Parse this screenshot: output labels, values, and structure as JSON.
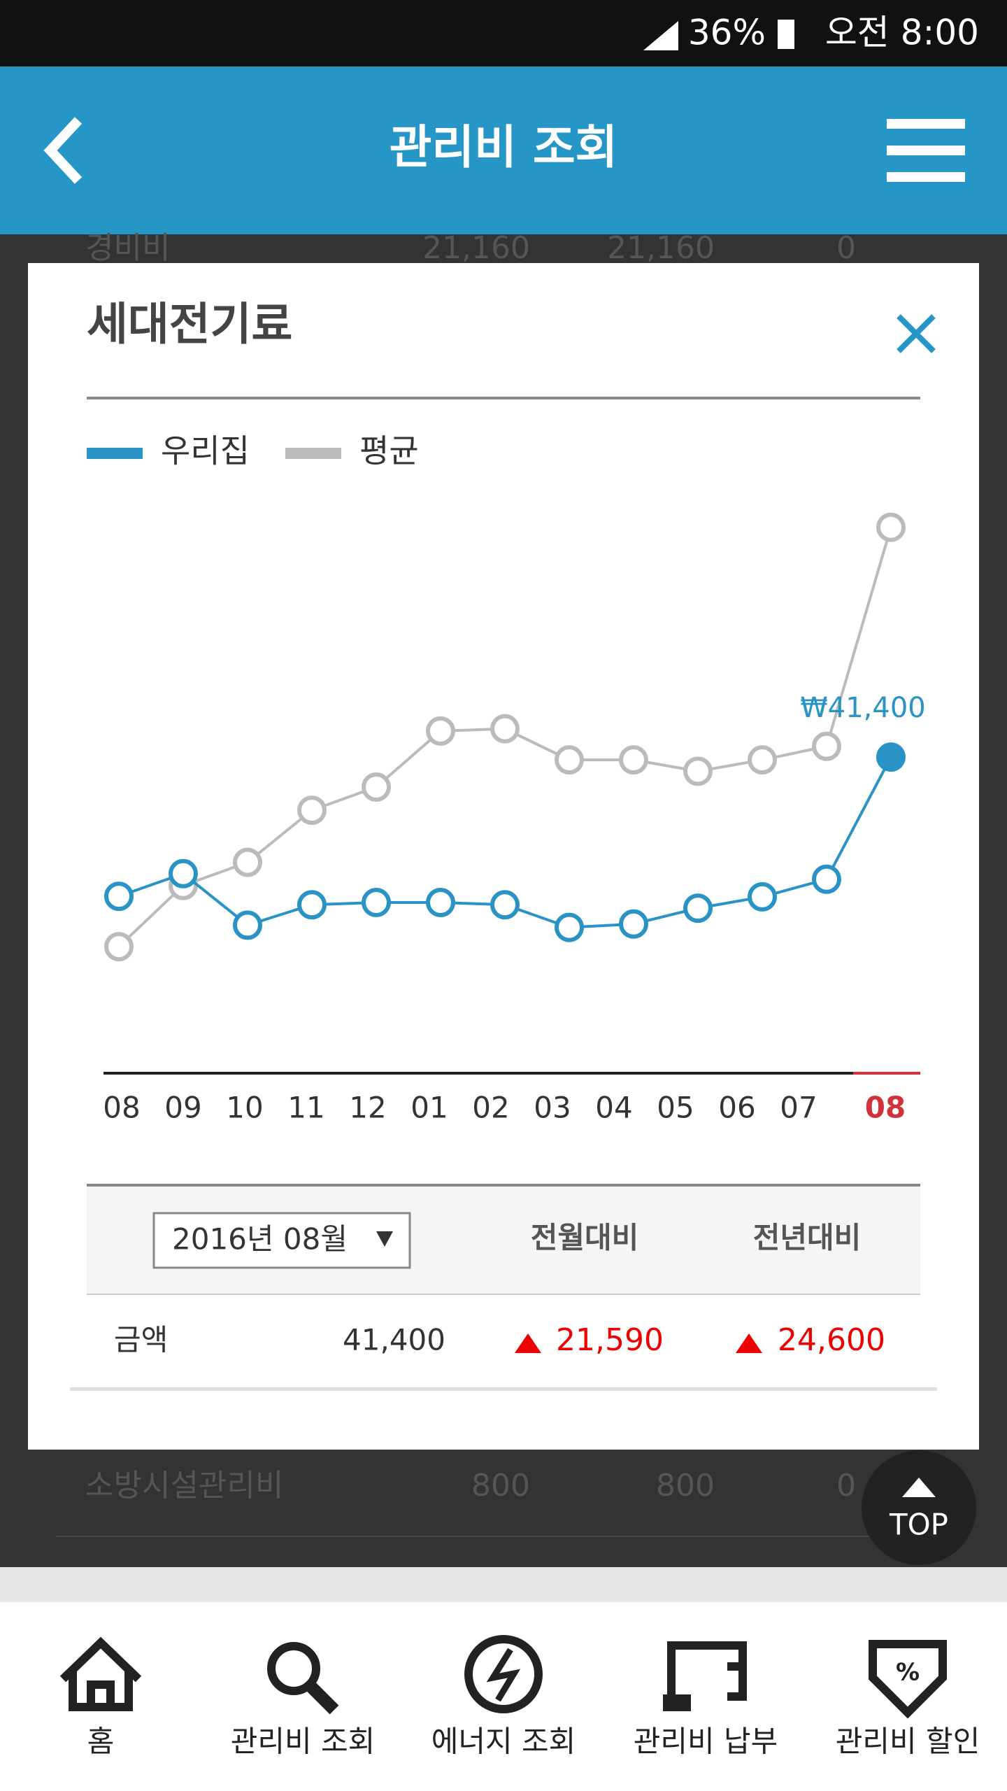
{
  "status_bar": {
    "battery": "36%",
    "time": "오전 8:00"
  },
  "header": {
    "title": "관리비 조회"
  },
  "background_rows": [
    [
      "경비비",
      "21,160",
      "21,160",
      "0"
    ],
    [
      "소방시설관리비",
      "800",
      "800",
      "0"
    ]
  ],
  "modal": {
    "title": "세대전기료"
  },
  "chart_data": {
    "type": "line",
    "categories": [
      "08",
      "09",
      "10",
      "11",
      "12",
      "01",
      "02",
      "03",
      "04",
      "05",
      "06",
      "07",
      "08"
    ],
    "series": [
      {
        "name": "우리집",
        "color": "#2a93c6",
        "values": [
          16800,
          20800,
          11700,
          15300,
          15700,
          15700,
          15300,
          11300,
          11900,
          14700,
          16700,
          19810,
          41400
        ],
        "value_labels": [
          null,
          null,
          null,
          null,
          null,
          null,
          null,
          null,
          null,
          null,
          null,
          null,
          "₩41,400"
        ]
      },
      {
        "name": "평균",
        "color": "#bbbbbb",
        "values": [
          7900,
          18700,
          22800,
          32000,
          36100,
          46000,
          46400,
          40900,
          40900,
          38900,
          40900,
          43300,
          82000
        ]
      }
    ],
    "ylim": [
      0,
      90000
    ]
  },
  "table": {
    "select": "2016년 08월",
    "headers": [
      "전월대비",
      "전년대비"
    ],
    "rows": [
      [
        "금액",
        "41,400",
        "21,590",
        "24,600"
      ]
    ]
  },
  "top_button": "TOP",
  "nav": [
    "홈",
    "관리비 조회",
    "에너지 조회",
    "관리비 납부",
    "관리비 할인"
  ]
}
